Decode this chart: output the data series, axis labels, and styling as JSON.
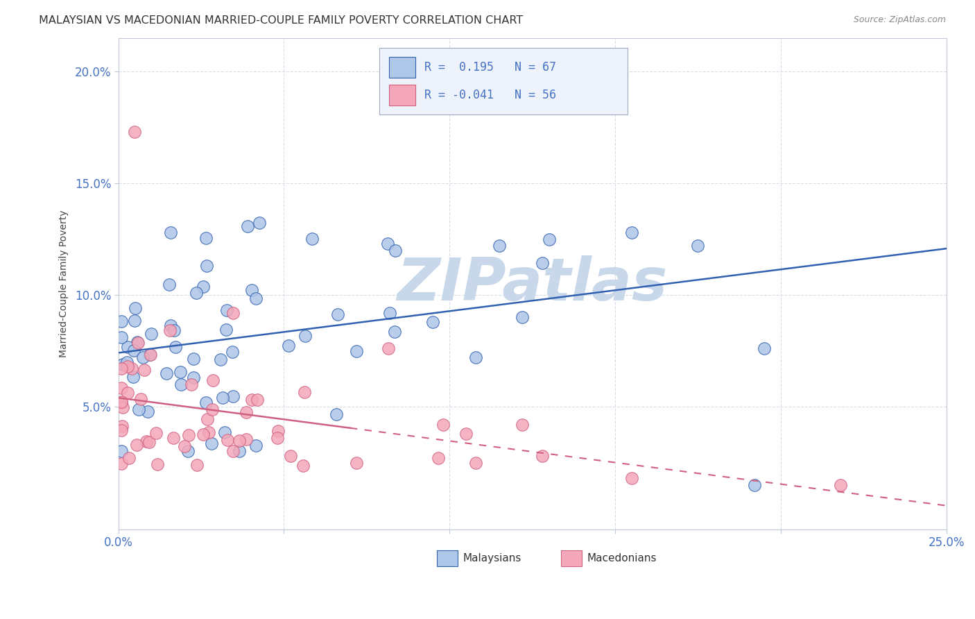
{
  "title": "MALAYSIAN VS MACEDONIAN MARRIED-COUPLE FAMILY POVERTY CORRELATION CHART",
  "source": "Source: ZipAtlas.com",
  "ylabel": "Married-Couple Family Poverty",
  "xlim": [
    0.0,
    0.25
  ],
  "ylim": [
    -0.005,
    0.215
  ],
  "ytick_vals": [
    0.05,
    0.1,
    0.15,
    0.2
  ],
  "ytick_labels": [
    "5.0%",
    "10.0%",
    "15.0%",
    "20.0%"
  ],
  "xtick_vals": [
    0.0,
    0.05,
    0.1,
    0.15,
    0.2,
    0.25
  ],
  "xtick_labels": [
    "0.0%",
    "",
    "",
    "",
    "",
    "25.0%"
  ],
  "malaysian_R": 0.195,
  "malaysian_N": 67,
  "macedonian_R": -0.041,
  "macedonian_N": 56,
  "malaysian_color": "#aec6e8",
  "macedonian_color": "#f4a7b9",
  "malaysian_line_color": "#3060b0",
  "macedonian_line_color": "#d06080",
  "watermark_color": "#c8d8ea",
  "title_color": "#333333",
  "source_color": "#888888",
  "tick_color": "#4472c4",
  "grid_color": "#d8dce8",
  "spine_color": "#c0c8d8"
}
